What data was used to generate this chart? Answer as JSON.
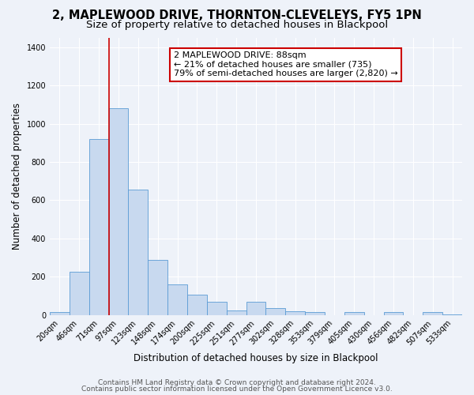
{
  "title": "2, MAPLEWOOD DRIVE, THORNTON-CLEVELEYS, FY5 1PN",
  "subtitle": "Size of property relative to detached houses in Blackpool",
  "xlabel": "Distribution of detached houses by size in Blackpool",
  "ylabel": "Number of detached properties",
  "bar_labels": [
    "20sqm",
    "46sqm",
    "71sqm",
    "97sqm",
    "123sqm",
    "148sqm",
    "174sqm",
    "200sqm",
    "225sqm",
    "251sqm",
    "277sqm",
    "302sqm",
    "328sqm",
    "353sqm",
    "379sqm",
    "405sqm",
    "430sqm",
    "456sqm",
    "482sqm",
    "507sqm",
    "533sqm"
  ],
  "bar_heights": [
    15,
    228,
    920,
    1080,
    655,
    290,
    160,
    105,
    70,
    25,
    70,
    35,
    20,
    15,
    0,
    15,
    0,
    15,
    0,
    15,
    5
  ],
  "bar_color": "#c8d9ef",
  "bar_edge_color": "#5b9bd5",
  "vline_x_index": 3,
  "vline_color": "#cc0000",
  "annotation_title": "2 MAPLEWOOD DRIVE: 88sqm",
  "annotation_line1": "← 21% of detached houses are smaller (735)",
  "annotation_line2": "79% of semi-detached houses are larger (2,820) →",
  "annotation_box_edge_color": "#cc0000",
  "annotation_box_face_color": "#ffffff",
  "ylim": [
    0,
    1450
  ],
  "yticks": [
    0,
    200,
    400,
    600,
    800,
    1000,
    1200,
    1400
  ],
  "footer1": "Contains HM Land Registry data © Crown copyright and database right 2024.",
  "footer2": "Contains public sector information licensed under the Open Government Licence v3.0.",
  "background_color": "#eef2f9",
  "plot_background_color": "#eef2f9",
  "grid_color": "#ffffff",
  "title_fontsize": 10.5,
  "subtitle_fontsize": 9.5,
  "axis_label_fontsize": 8.5,
  "tick_fontsize": 7,
  "annotation_fontsize": 8,
  "footer_fontsize": 6.5
}
